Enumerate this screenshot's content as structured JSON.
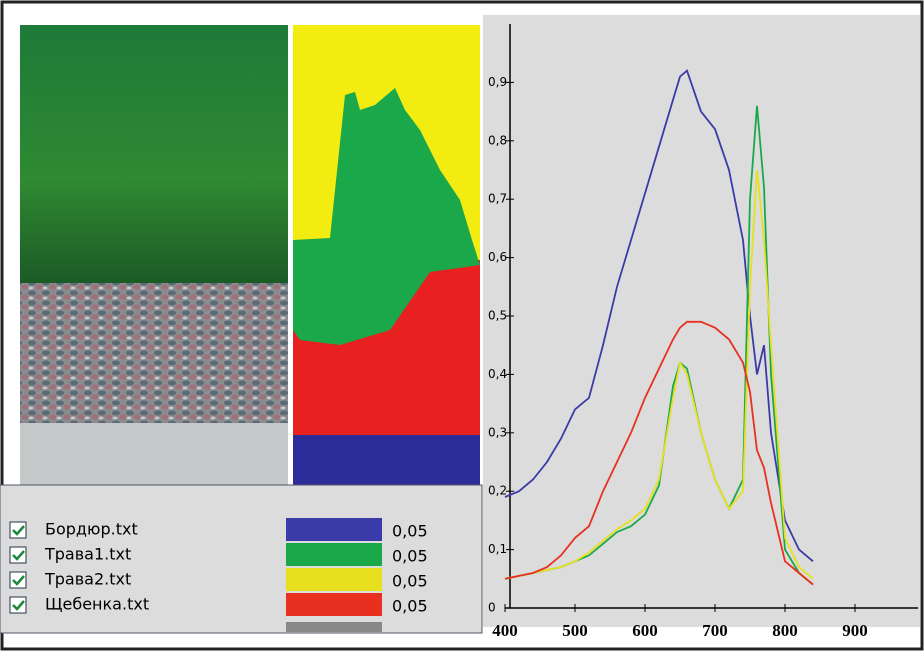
{
  "chart_data": {
    "type": "line",
    "x": [
      400,
      420,
      440,
      460,
      480,
      500,
      520,
      540,
      560,
      580,
      600,
      620,
      640,
      650,
      660,
      680,
      700,
      720,
      740,
      750,
      760,
      770,
      780,
      800,
      820,
      840
    ],
    "series": [
      {
        "name": "Бордюр.txt",
        "color": "#3a3aa8",
        "threshold": "0,05",
        "values": [
          0.19,
          0.2,
          0.22,
          0.25,
          0.29,
          0.34,
          0.36,
          0.45,
          0.55,
          0.63,
          0.71,
          0.79,
          0.87,
          0.91,
          0.92,
          0.85,
          0.82,
          0.75,
          0.63,
          0.5,
          0.4,
          0.45,
          0.3,
          0.15,
          0.1,
          0.08
        ]
      },
      {
        "name": "Трава1.txt",
        "color": "#1aa84a",
        "threshold": "0,05",
        "values": [
          0.05,
          0.055,
          0.06,
          0.065,
          0.07,
          0.08,
          0.09,
          0.11,
          0.13,
          0.14,
          0.16,
          0.21,
          0.38,
          0.42,
          0.41,
          0.3,
          0.22,
          0.17,
          0.22,
          0.7,
          0.86,
          0.72,
          0.4,
          0.1,
          0.06,
          0.04
        ]
      },
      {
        "name": "Трава2.txt",
        "color": "#e6e020",
        "threshold": "0,05",
        "values": [
          0.05,
          0.055,
          0.06,
          0.065,
          0.07,
          0.08,
          0.095,
          0.115,
          0.135,
          0.15,
          0.17,
          0.22,
          0.36,
          0.42,
          0.4,
          0.3,
          0.22,
          0.17,
          0.2,
          0.55,
          0.75,
          0.63,
          0.45,
          0.12,
          0.07,
          0.05
        ]
      },
      {
        "name": "Щебенка.txt",
        "color": "#e83020",
        "threshold": "0,05",
        "values": [
          0.05,
          0.055,
          0.06,
          0.07,
          0.09,
          0.12,
          0.14,
          0.2,
          0.25,
          0.3,
          0.36,
          0.41,
          0.46,
          0.48,
          0.49,
          0.49,
          0.48,
          0.46,
          0.42,
          0.37,
          0.27,
          0.24,
          0.18,
          0.08,
          0.06,
          0.04
        ]
      }
    ],
    "xlim": [
      400,
      990
    ],
    "xticks": [
      400,
      500,
      600,
      700,
      800,
      900
    ],
    "ylim": [
      0,
      1
    ],
    "yticks": [
      0,
      {
        "value": 0.1,
        "label": "0,1"
      },
      {
        "value": 0.2,
        "label": "0,2"
      },
      {
        "value": 0.3,
        "label": "0,3"
      },
      {
        "value": 0.4,
        "label": "0,4"
      },
      {
        "value": 0.5,
        "label": "0,5"
      },
      {
        "value": 0.6,
        "label": "0,6"
      },
      {
        "value": 0.7,
        "label": "0,7"
      },
      {
        "value": 0.8,
        "label": "0,8"
      },
      {
        "value": 0.9,
        "label": "0,9"
      }
    ]
  }
}
